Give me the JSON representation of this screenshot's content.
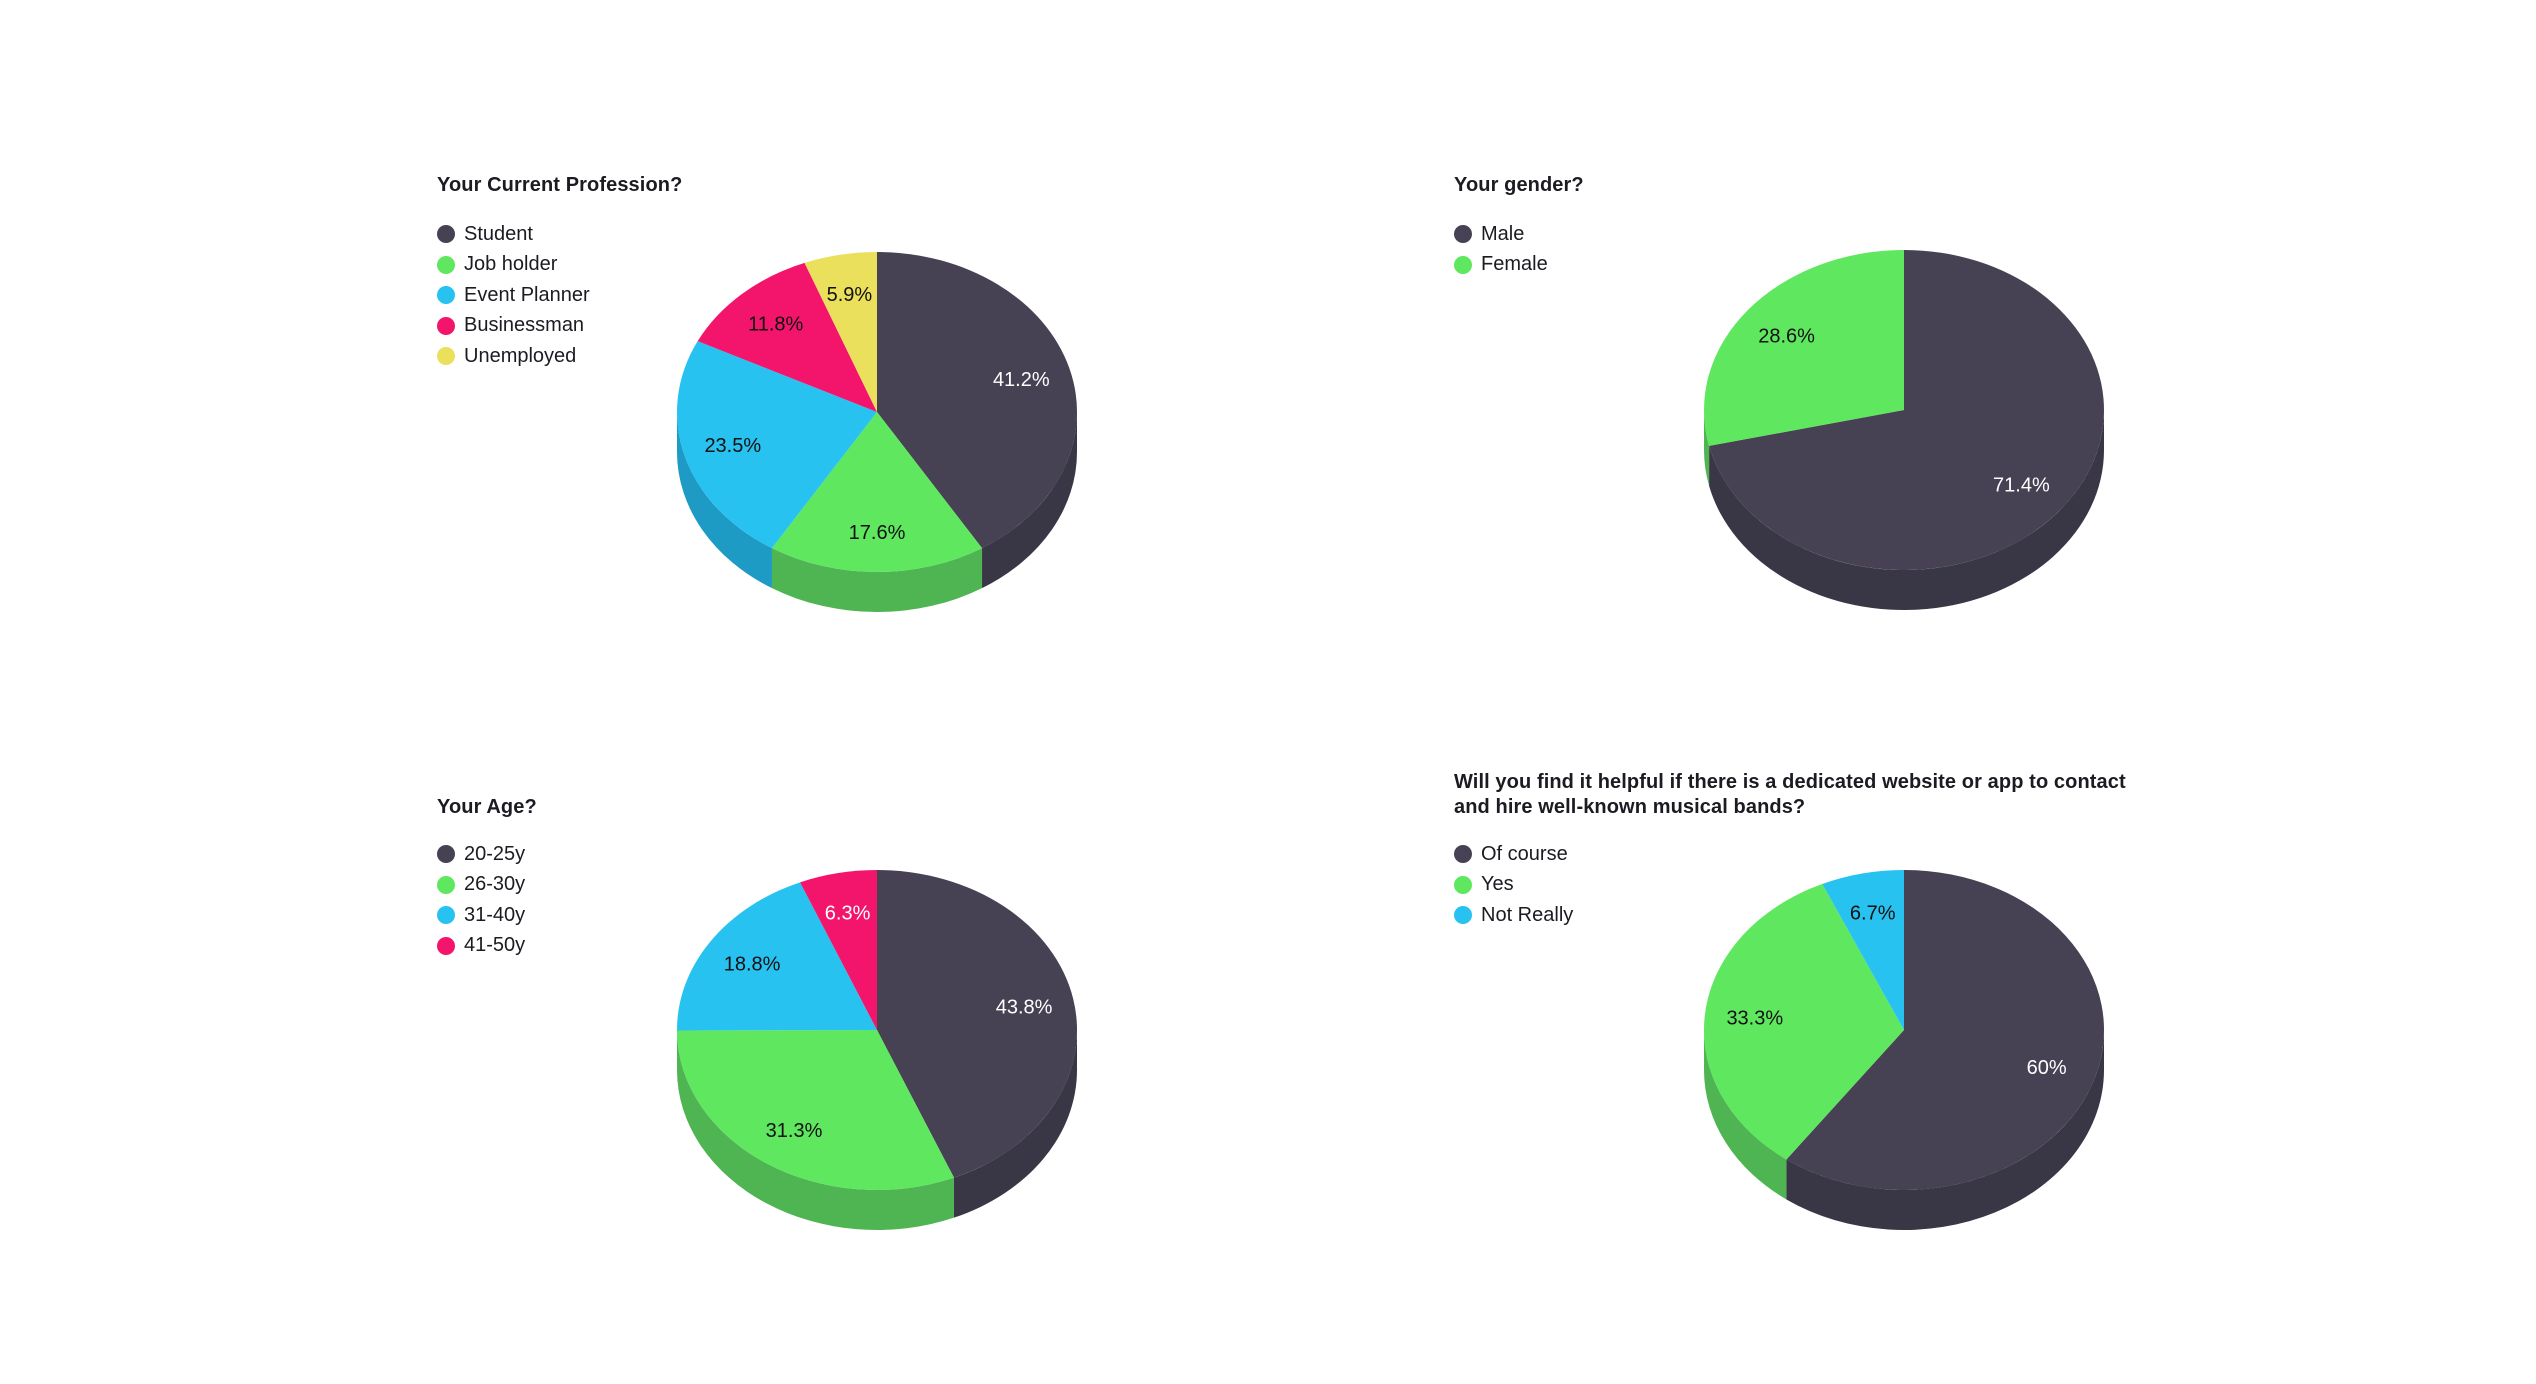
{
  "page": {
    "background": "#ffffff",
    "text_color": "#1b1b22"
  },
  "chart_data": [
    {
      "type": "pie",
      "id": "profession",
      "title": "Your Current Profession?",
      "legend_position": "left",
      "effect": "3d",
      "start_angle_deg": 0,
      "direction": "clockwise",
      "categories": [
        "Student",
        "Job holder",
        "Event Planner",
        "Businessman",
        "Unemployed"
      ],
      "values": [
        41.2,
        17.6,
        23.5,
        11.8,
        5.9
      ],
      "value_labels": [
        "41.2%",
        "17.6%",
        "23.5%",
        "11.8%",
        "5.9%"
      ],
      "colors": [
        "#464153",
        "#5fe75f",
        "#28c2f0",
        "#f3156b",
        "#eae05b"
      ],
      "side_colors": [
        "#393645",
        "#4fb553",
        "#1d9bc4",
        "#c21156",
        "#c2b64a"
      ],
      "value_label_colors": [
        "#ffffff",
        "#111111",
        "#111111",
        "#111111",
        "#111111"
      ]
    },
    {
      "type": "pie",
      "id": "gender",
      "title": "Your gender?",
      "legend_position": "left",
      "effect": "3d",
      "start_angle_deg": 0,
      "direction": "clockwise",
      "categories": [
        "Male",
        "Female"
      ],
      "values": [
        71.4,
        28.6
      ],
      "value_labels": [
        "71.4%",
        "28.6%"
      ],
      "colors": [
        "#464153",
        "#5fe75f"
      ],
      "side_colors": [
        "#393645",
        "#4fb553"
      ],
      "value_label_colors": [
        "#ffffff",
        "#111111"
      ]
    },
    {
      "type": "pie",
      "id": "age",
      "title": "Your Age?",
      "legend_position": "left",
      "effect": "3d",
      "start_angle_deg": 0,
      "direction": "clockwise",
      "categories": [
        "20-25y",
        "26-30y",
        "31-40y",
        "41-50y"
      ],
      "values": [
        43.8,
        31.3,
        18.8,
        6.3
      ],
      "value_labels": [
        "43.8%",
        "31.3%",
        "18.8%",
        "6.3%"
      ],
      "colors": [
        "#464153",
        "#5fe75f",
        "#28c2f0",
        "#f3156b"
      ],
      "side_colors": [
        "#393645",
        "#4fb553",
        "#1d9bc4",
        "#c21156"
      ],
      "value_label_colors": [
        "#ffffff",
        "#111111",
        "#111111",
        "#ffffff"
      ]
    },
    {
      "type": "pie",
      "id": "helpful-website",
      "title": "Will you find it helpful if there is a dedicated website or app to contact and hire well-known musical bands?",
      "legend_position": "left",
      "effect": "3d",
      "start_angle_deg": 0,
      "direction": "clockwise",
      "categories": [
        "Of course",
        "Yes",
        "Not Really"
      ],
      "values": [
        60,
        33.3,
        6.7
      ],
      "value_labels": [
        "60%",
        "33.3%",
        "6.7%"
      ],
      "colors": [
        "#464153",
        "#5fe75f",
        "#28c2f0"
      ],
      "side_colors": [
        "#393645",
        "#4fb553",
        "#1d9bc4"
      ],
      "value_label_colors": [
        "#ffffff",
        "#111111",
        "#111111"
      ]
    }
  ]
}
